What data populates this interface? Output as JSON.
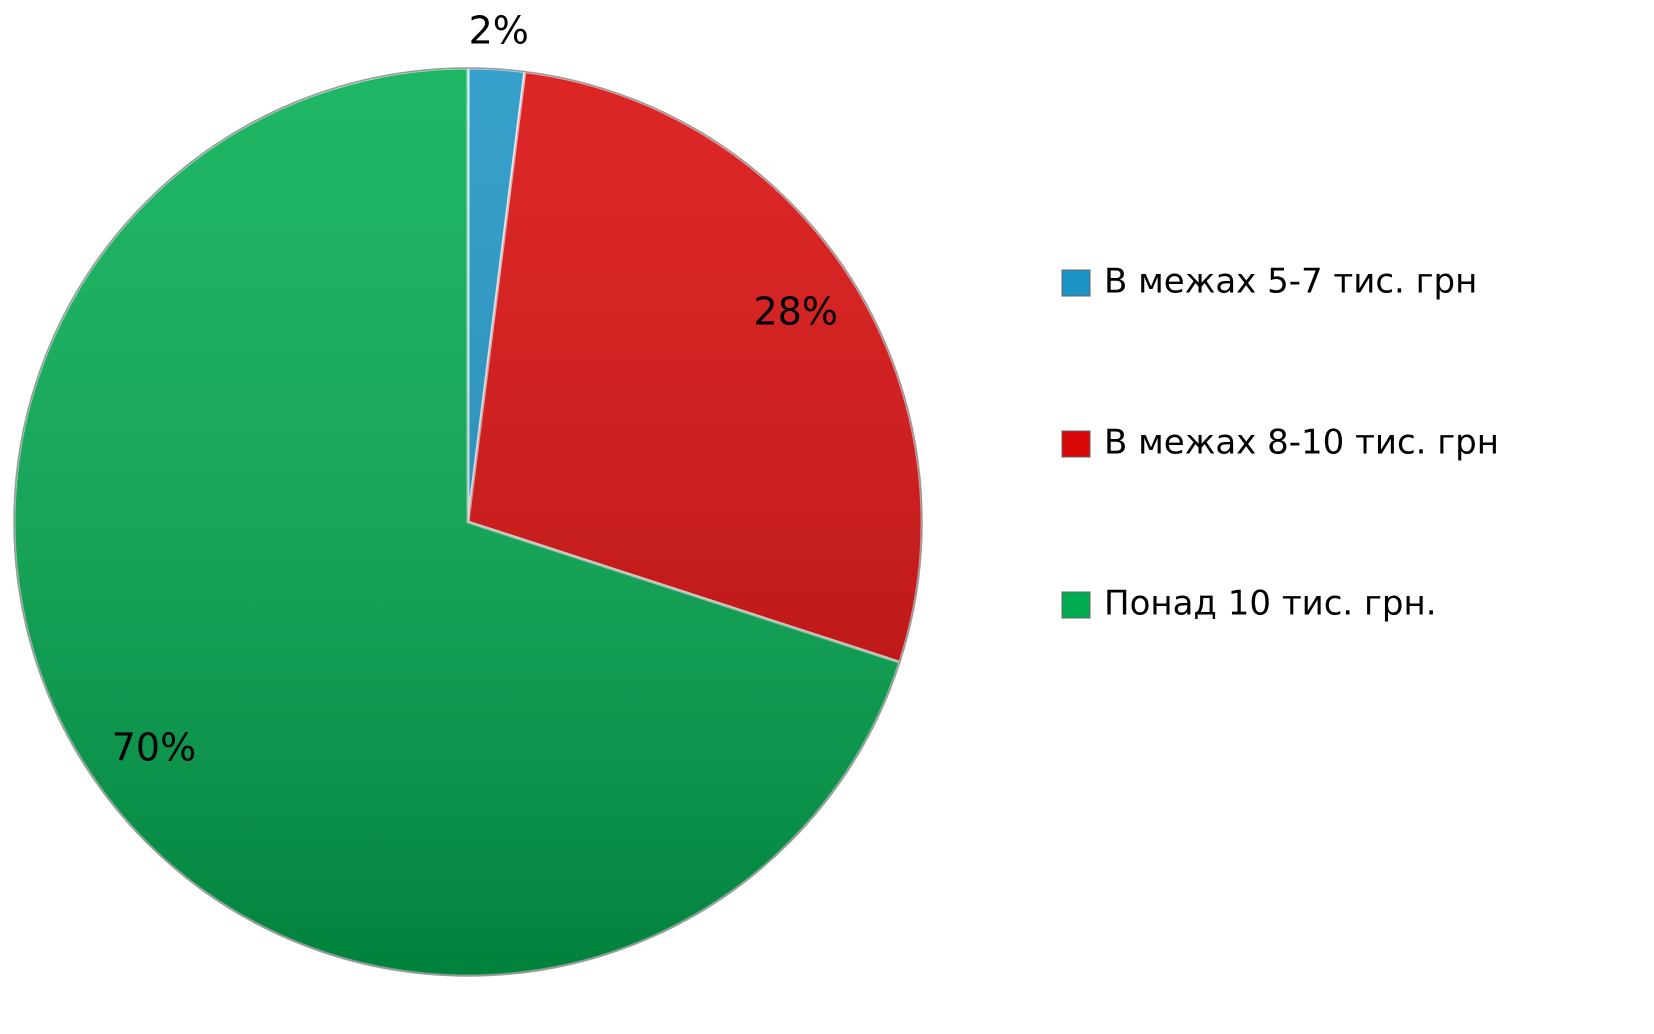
{
  "chart_data": {
    "type": "pie",
    "categories": [
      "В межах 5-7 тис. грн",
      "В межах 8-10 тис. грн",
      "Понад 10 тис. грн."
    ],
    "values": [
      2,
      28,
      70
    ],
    "value_labels": [
      "2%",
      "28%",
      "70%"
    ],
    "colors": [
      "#1b93c4",
      "#d80808",
      "#00ac50"
    ],
    "legend": "right"
  }
}
